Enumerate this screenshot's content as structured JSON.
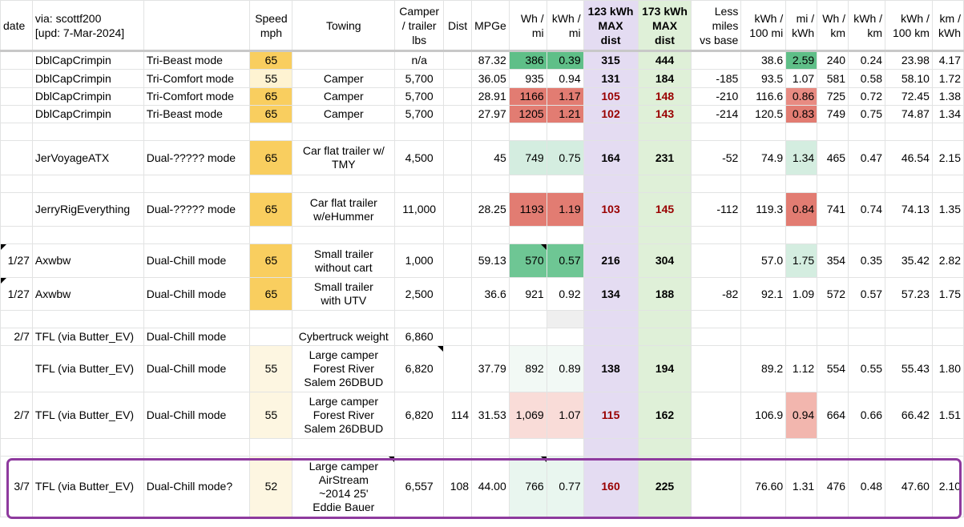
{
  "header": {
    "date": "date",
    "via_line1": "via: scottf200",
    "via_line2": "[upd: 7-Mar-2024]",
    "mode": "",
    "speed_line1": "Speed",
    "speed_line2": "mph",
    "towing": "Towing",
    "camper_line1": "Camper",
    "camper_line2": "/ trailer",
    "camper_line3": "lbs",
    "dist": "Dist",
    "mpge": "MPGe",
    "wh_mi_line1": "Wh /",
    "wh_mi_line2": "mi",
    "kwh_mi_line1": "kWh /",
    "kwh_mi_line2": "mi",
    "max123_line1": "123 kWh",
    "max123_line2": "MAX",
    "max123_line3": "dist",
    "max173_line1": "173 kWh",
    "max173_line2": "MAX",
    "max173_line3": "dist",
    "less_line1": "Less",
    "less_line2": "miles",
    "less_line3": "vs base",
    "kwh100mi_line1": "kWh /",
    "kwh100mi_line2": "100 mi",
    "mikwh_line1": "mi /",
    "mikwh_line2": "kWh",
    "whkm_line1": "Wh /",
    "whkm_line2": "km",
    "kwhkm_line1": "kWh /",
    "kwhkm_line2": "km",
    "kwh100km_line1": "kWh /",
    "kwh100km_line2": "100 km",
    "kmkwh_line1": "km /",
    "kmkwh_line2": "kWh"
  },
  "rows": [
    {
      "date": "",
      "source": "DblCapCrimpin",
      "mode": "Tri-Beast mode",
      "speed": "65",
      "towing": "",
      "camper": "n/a",
      "dist": "",
      "mpge": "87.32",
      "wh_mi": "386",
      "kwh_mi": "0.39",
      "max123": "315",
      "max173": "444",
      "less": "",
      "kwh100mi": "38.6",
      "mikwh": "2.59",
      "whkm": "240",
      "kwhkm": "0.24",
      "kwh100km": "23.98",
      "kmkwh": "4.17"
    },
    {
      "date": "",
      "source": "DblCapCrimpin",
      "mode": "Tri-Comfort mode",
      "speed": "55",
      "towing": "Camper",
      "camper": "5,700",
      "dist": "",
      "mpge": "36.05",
      "wh_mi": "935",
      "kwh_mi": "0.94",
      "max123": "131",
      "max173": "184",
      "less": "-185",
      "kwh100mi": "93.5",
      "mikwh": "1.07",
      "whkm": "581",
      "kwhkm": "0.58",
      "kwh100km": "58.10",
      "kmkwh": "1.72"
    },
    {
      "date": "",
      "source": "DblCapCrimpin",
      "mode": "Tri-Comfort mode",
      "speed": "65",
      "towing": "Camper",
      "camper": "5,700",
      "dist": "",
      "mpge": "28.91",
      "wh_mi": "1166",
      "kwh_mi": "1.17",
      "max123": "105",
      "max173": "148",
      "less": "-210",
      "kwh100mi": "116.6",
      "mikwh": "0.86",
      "whkm": "725",
      "kwhkm": "0.72",
      "kwh100km": "72.45",
      "kmkwh": "1.38"
    },
    {
      "date": "",
      "source": "DblCapCrimpin",
      "mode": "Tri-Beast mode",
      "speed": "65",
      "towing": "Camper",
      "camper": "5,700",
      "dist": "",
      "mpge": "27.97",
      "wh_mi": "1205",
      "kwh_mi": "1.21",
      "max123": "102",
      "max173": "143",
      "less": "-214",
      "kwh100mi": "120.5",
      "mikwh": "0.83",
      "whkm": "749",
      "kwhkm": "0.75",
      "kwh100km": "74.87",
      "kmkwh": "1.34"
    },
    {
      "date": "",
      "source": "JerVoyageATX",
      "mode": "Dual-????? mode",
      "speed": "65",
      "towing_line1": "Car flat trailer w/",
      "towing_line2": "TMY",
      "camper": "4,500",
      "dist": "",
      "mpge": "45",
      "wh_mi": "749",
      "kwh_mi": "0.75",
      "max123": "164",
      "max173": "231",
      "less": "-52",
      "kwh100mi": "74.9",
      "mikwh": "1.34",
      "whkm": "465",
      "kwhkm": "0.47",
      "kwh100km": "46.54",
      "kmkwh": "2.15"
    },
    {
      "date": "",
      "source": "JerryRigEverything",
      "mode": "Dual-????? mode",
      "speed": "65",
      "towing_line1": "Car flat trailer",
      "towing_line2": "w/eHummer",
      "camper": "11,000",
      "dist": "",
      "mpge": "28.25",
      "wh_mi": "1193",
      "kwh_mi": "1.19",
      "max123": "103",
      "max173": "145",
      "less": "-112",
      "kwh100mi": "119.3",
      "mikwh": "0.84",
      "whkm": "741",
      "kwhkm": "0.74",
      "kwh100km": "74.13",
      "kmkwh": "1.35"
    },
    {
      "date": "1/27",
      "source": "Axwbw",
      "mode": "Dual-Chill mode",
      "speed": "65",
      "towing_line1": "Small trailer",
      "towing_line2": "without cart",
      "camper": "1,000",
      "dist": "",
      "mpge": "59.13",
      "wh_mi": "570",
      "kwh_mi": "0.57",
      "max123": "216",
      "max173": "304",
      "less": "",
      "kwh100mi": "57.0",
      "mikwh": "1.75",
      "whkm": "354",
      "kwhkm": "0.35",
      "kwh100km": "35.42",
      "kmkwh": "2.82"
    },
    {
      "date": "1/27",
      "source": "Axwbw",
      "mode": "Dual-Chill mode",
      "speed": "65",
      "towing_line1": "Small trailer",
      "towing_line2": "with UTV",
      "camper": "2,500",
      "dist": "",
      "mpge": "36.6",
      "wh_mi": "921",
      "kwh_mi": "0.92",
      "max123": "134",
      "max173": "188",
      "less": "-82",
      "kwh100mi": "92.1",
      "mikwh": "1.09",
      "whkm": "572",
      "kwhkm": "0.57",
      "kwh100km": "57.23",
      "kmkwh": "1.75"
    },
    {
      "date": "2/7",
      "source": "TFL (via Butter_EV)",
      "mode": "Dual-Chill mode",
      "speed": "",
      "towing": "Cybertruck weight",
      "camper": "6,860"
    },
    {
      "date": "",
      "source": "TFL (via Butter_EV)",
      "mode": "Dual-Chill mode",
      "speed": "55",
      "towing_line1": "Large camper",
      "towing_line2": "Forest River",
      "towing_line3": "Salem 26DBUD",
      "camper": "6,820",
      "dist": "",
      "mpge": "37.79",
      "wh_mi": "892",
      "kwh_mi": "0.89",
      "max123": "138",
      "max173": "194",
      "less": "",
      "kwh100mi": "89.2",
      "mikwh": "1.12",
      "whkm": "554",
      "kwhkm": "0.55",
      "kwh100km": "55.43",
      "kmkwh": "1.80"
    },
    {
      "date": "2/7",
      "source": "TFL (via Butter_EV)",
      "mode": "Dual-Chill mode",
      "speed": "55",
      "towing_line1": "Large camper",
      "towing_line2": "Forest River",
      "towing_line3": "Salem 26DBUD",
      "camper": "6,820",
      "dist": "114",
      "mpge": "31.53",
      "wh_mi": "1,069",
      "kwh_mi": "1.07",
      "max123": "115",
      "max173": "162",
      "less": "",
      "kwh100mi": "106.9",
      "mikwh": "0.94",
      "whkm": "664",
      "kwhkm": "0.66",
      "kwh100km": "66.42",
      "kmkwh": "1.51"
    },
    {
      "date": "3/7",
      "source": "TFL (via Butter_EV)",
      "mode": "Dual-Chill mode?",
      "speed": "52",
      "towing_line1": "Large camper",
      "towing_line2": "AirStream",
      "towing_line3": "~2014 25'",
      "towing_line4": "Eddie Bauer",
      "camper": "6,557",
      "dist": "108",
      "mpge": "44.00",
      "wh_mi": "766",
      "kwh_mi": "0.77",
      "max123": "160",
      "max173": "225",
      "less": "",
      "kwh100mi": "76.60",
      "mikwh": "1.31",
      "whkm": "476",
      "kwhkm": "0.48",
      "kwh100km": "47.60",
      "kmkwh": "2.10"
    }
  ]
}
